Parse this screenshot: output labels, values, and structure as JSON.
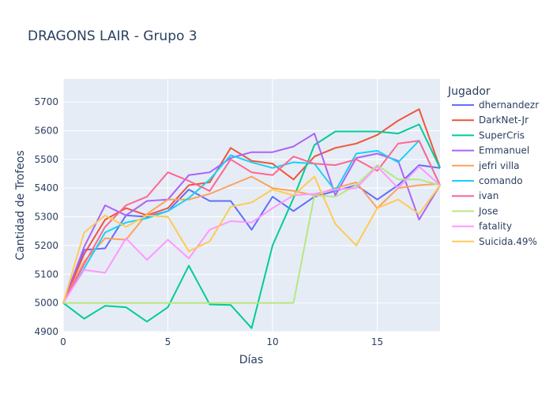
{
  "chart_data": {
    "type": "line",
    "title": "DRAGONS LAIR - Grupo 3",
    "xlabel": "Días",
    "ylabel": "Cantidad de Trofeos",
    "legend_title": "Jugador",
    "legend_position": "right",
    "grid": true,
    "xlim": [
      0,
      18
    ],
    "ylim": [
      4900,
      5780
    ],
    "x_ticks": [
      0,
      5,
      10,
      15
    ],
    "y_ticks": [
      4900,
      5000,
      5100,
      5200,
      5300,
      5400,
      5500,
      5600,
      5700
    ],
    "x": [
      0,
      1,
      2,
      3,
      4,
      5,
      6,
      7,
      8,
      9,
      10,
      11,
      12,
      13,
      14,
      15,
      16,
      17,
      18
    ],
    "series": [
      {
        "name": "dhernandezr",
        "color": "#636efa",
        "values": [
          5000,
          5185,
          5190,
          5305,
          5300,
          5320,
          5395,
          5355,
          5355,
          5255,
          5370,
          5320,
          5370,
          5390,
          5410,
          5360,
          5410,
          5480,
          5470
        ]
      },
      {
        "name": "DarkNet-Jr",
        "color": "#ef553b",
        "values": [
          5000,
          5170,
          5290,
          5330,
          5305,
          5330,
          5410,
          5420,
          5540,
          5495,
          5485,
          5430,
          5510,
          5540,
          5555,
          5585,
          5635,
          5675,
          5470
        ]
      },
      {
        "name": "SuperCris",
        "color": "#00cc96",
        "values": [
          5000,
          4945,
          4990,
          4985,
          4935,
          4985,
          5130,
          4995,
          4993,
          4912,
          5200,
          5365,
          5550,
          5597,
          5597,
          5597,
          5590,
          5622,
          5470
        ]
      },
      {
        "name": "Emmanuel",
        "color": "#ab63fa",
        "values": [
          5000,
          5195,
          5340,
          5305,
          5355,
          5360,
          5445,
          5455,
          5505,
          5525,
          5525,
          5545,
          5590,
          5375,
          5505,
          5520,
          5495,
          5290,
          5410
        ]
      },
      {
        "name": "jefri villa",
        "color": "#ffa15a",
        "values": [
          5000,
          5145,
          5225,
          5220,
          5310,
          5360,
          5360,
          5380,
          5410,
          5440,
          5400,
          5390,
          5375,
          5400,
          5420,
          5330,
          5400,
          5410,
          5415
        ]
      },
      {
        "name": "comando",
        "color": "#19d3f3",
        "values": [
          5000,
          5120,
          5245,
          5280,
          5295,
          5320,
          5365,
          5430,
          5515,
          5490,
          5470,
          5490,
          5485,
          5390,
          5520,
          5530,
          5490,
          5565,
          5410
        ]
      },
      {
        "name": "ivan",
        "color": "#ff6692",
        "values": [
          5000,
          5135,
          5265,
          5340,
          5370,
          5455,
          5425,
          5390,
          5500,
          5455,
          5445,
          5510,
          5485,
          5480,
          5500,
          5460,
          5555,
          5565,
          5410
        ]
      },
      {
        "name": "Jose",
        "color": "#b6e880",
        "values": [
          5000,
          5000,
          5000,
          5000,
          5000,
          5000,
          5000,
          5000,
          5000,
          5000,
          5000,
          5000,
          5375,
          5370,
          5410,
          5480,
          5430,
          5430,
          5410
        ]
      },
      {
        "name": "fatality",
        "color": "#ff97ff",
        "values": [
          5000,
          5115,
          5105,
          5225,
          5150,
          5220,
          5155,
          5255,
          5285,
          5280,
          5330,
          5375,
          5380,
          5395,
          5400,
          5475,
          5400,
          5475,
          5410
        ]
      },
      {
        "name": "Suicida.49%",
        "color": "#fecb52",
        "values": [
          5000,
          5245,
          5305,
          5265,
          5305,
          5300,
          5180,
          5215,
          5335,
          5350,
          5395,
          5375,
          5440,
          5275,
          5200,
          5330,
          5360,
          5310,
          5410
        ]
      }
    ]
  }
}
